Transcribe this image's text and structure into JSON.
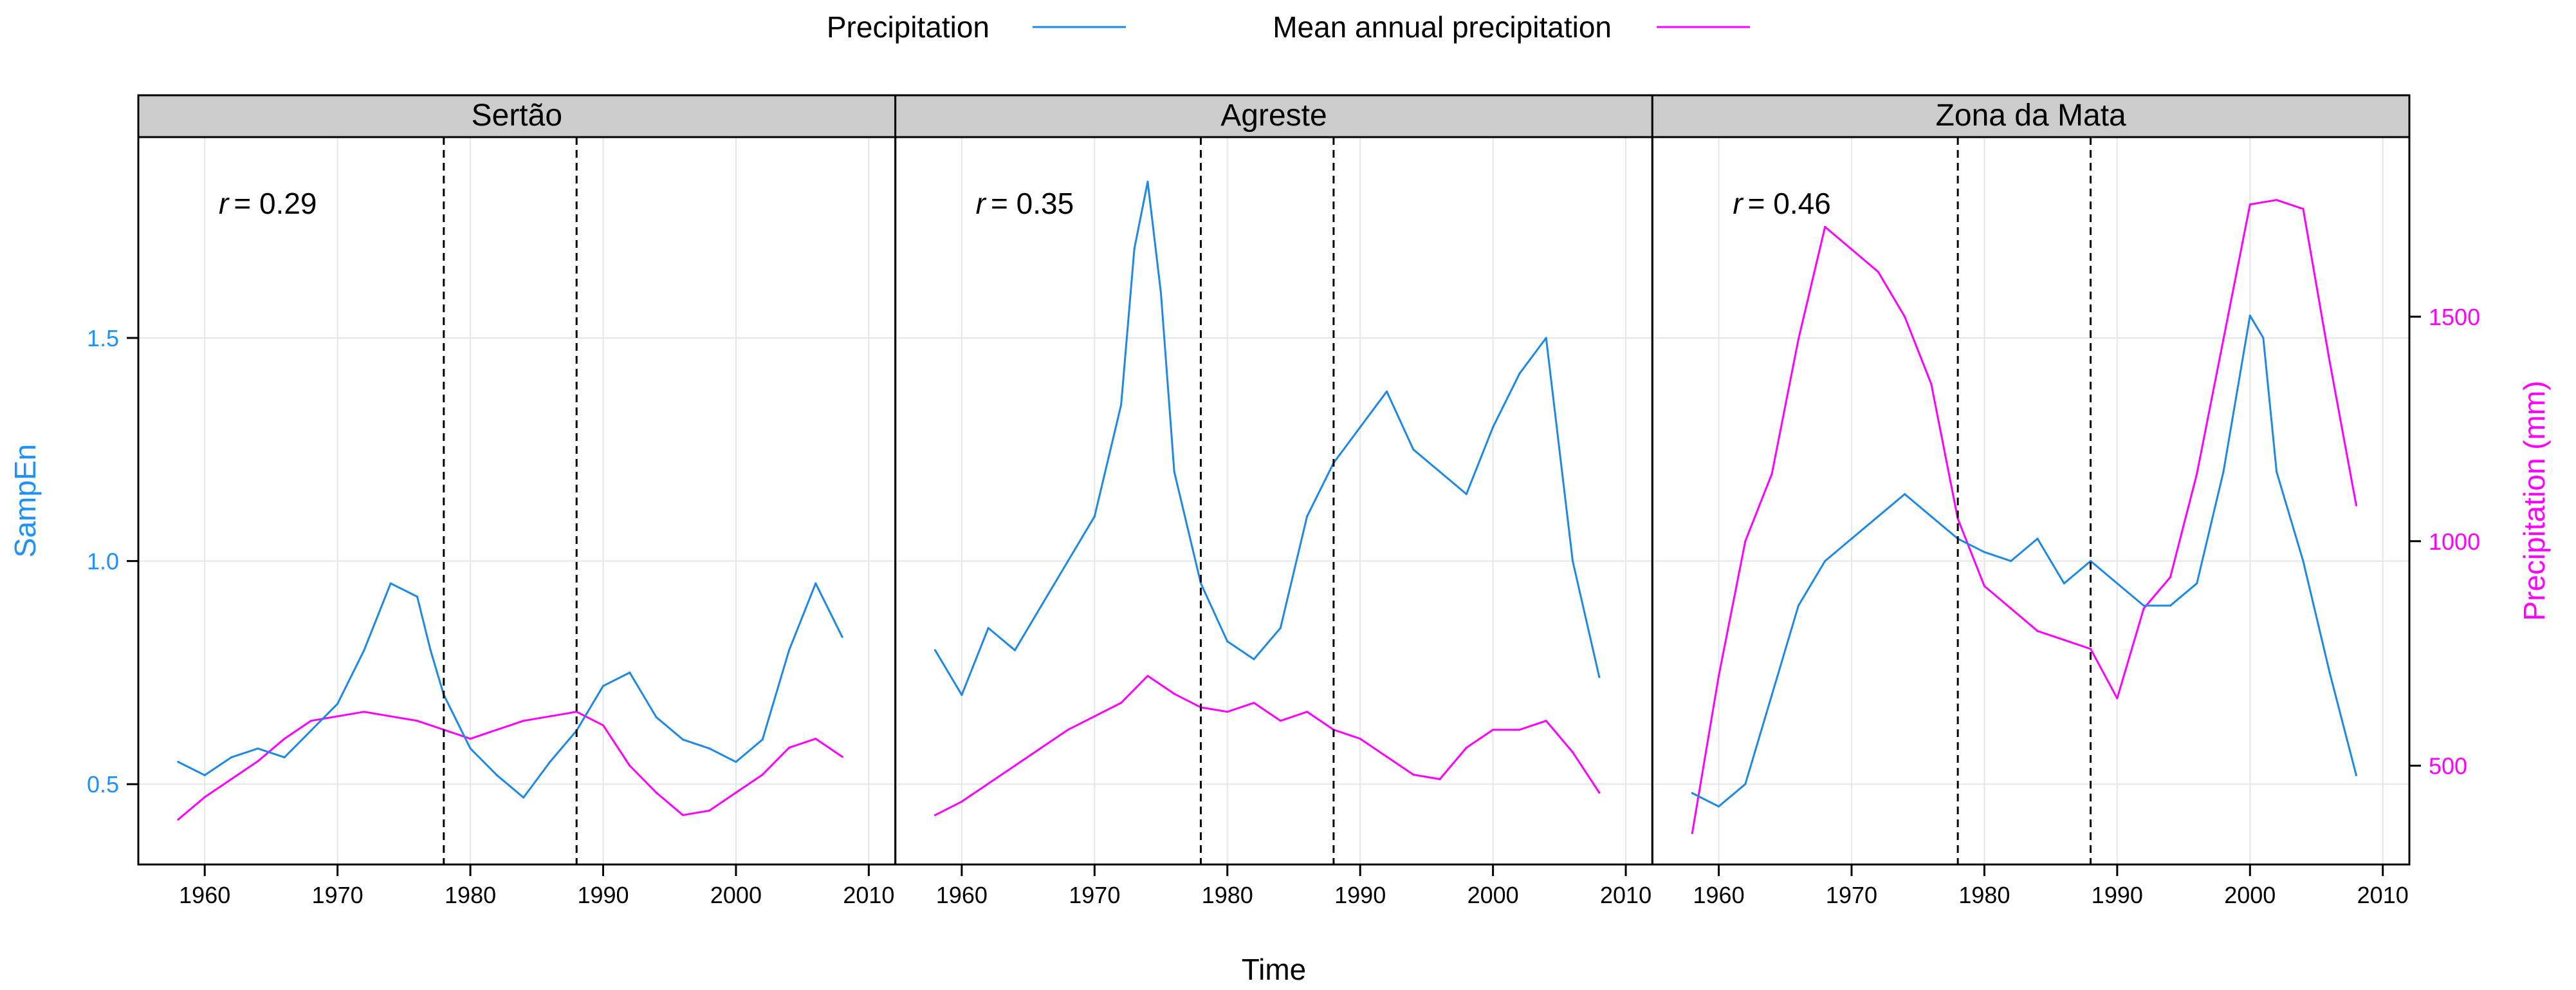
{
  "chart_data": {
    "type": "line",
    "legend": {
      "position": "top-center",
      "entries": [
        {
          "label": "Precipitation",
          "color": "#1E88E5"
        },
        {
          "label": "Mean annual precipitation",
          "color": "#FF00FF"
        }
      ]
    },
    "xlabel": "Time",
    "ylabel_left": "SampEn",
    "ylabel_right": "Precipitation (mm)",
    "colors": {
      "left_axis": "#1E90FF",
      "right_axis": "#FF00FF"
    },
    "xlim": [
      1955,
      2012
    ],
    "x_ticks": [
      1960,
      1970,
      1980,
      1990,
      2000,
      2010
    ],
    "ylim_left": [
      0.32,
      1.95
    ],
    "y_ticks_left": [
      0.5,
      1.0,
      1.5
    ],
    "ylim_right": [
      280,
      1900
    ],
    "y_ticks_right": [
      500,
      1000,
      1500
    ],
    "grid": true,
    "vlines": [
      1978,
      1988
    ],
    "r_prefix": "r",
    "panels": [
      {
        "title": "Sertão",
        "r_value": "= 0.29",
        "series": [
          {
            "name": "Precipitation",
            "axis": "left",
            "x": [
              1958,
              1960,
              1962,
              1964,
              1966,
              1968,
              1970,
              1972,
              1974,
              1976,
              1977,
              1978,
              1980,
              1982,
              1984,
              1986,
              1988,
              1990,
              1992,
              1994,
              1996,
              1998,
              2000,
              2002,
              2004,
              2006,
              2008
            ],
            "y": [
              0.55,
              0.52,
              0.56,
              0.58,
              0.56,
              0.62,
              0.68,
              0.8,
              0.95,
              0.92,
              0.8,
              0.7,
              0.58,
              0.52,
              0.47,
              0.55,
              0.62,
              0.72,
              0.75,
              0.65,
              0.6,
              0.58,
              0.55,
              0.6,
              0.8,
              0.95,
              0.83
            ]
          },
          {
            "name": "Mean annual precipitation",
            "axis": "right",
            "x": [
              1958,
              1960,
              1962,
              1964,
              1966,
              1968,
              1970,
              1972,
              1974,
              1976,
              1978,
              1980,
              1982,
              1984,
              1986,
              1988,
              1990,
              1992,
              1994,
              1996,
              1998,
              2000,
              2002,
              2004,
              2006,
              2008
            ],
            "y": [
              380,
              430,
              470,
              510,
              560,
              600,
              610,
              620,
              610,
              600,
              580,
              560,
              580,
              600,
              610,
              620,
              590,
              500,
              440,
              390,
              400,
              440,
              480,
              540,
              560,
              520
            ]
          }
        ]
      },
      {
        "title": "Agreste",
        "r_value": "= 0.35",
        "series": [
          {
            "name": "Precipitation",
            "axis": "left",
            "x": [
              1958,
              1960,
              1962,
              1964,
              1966,
              1968,
              1970,
              1972,
              1973,
              1974,
              1975,
              1976,
              1978,
              1980,
              1982,
              1984,
              1986,
              1988,
              1990,
              1992,
              1994,
              1996,
              1998,
              2000,
              2002,
              2004,
              2006,
              2008
            ],
            "y": [
              0.8,
              0.7,
              0.85,
              0.8,
              0.9,
              1.0,
              1.1,
              1.35,
              1.7,
              1.85,
              1.6,
              1.2,
              0.95,
              0.82,
              0.78,
              0.85,
              1.1,
              1.22,
              1.3,
              1.38,
              1.25,
              1.2,
              1.15,
              1.3,
              1.42,
              1.5,
              1.0,
              0.74
            ]
          },
          {
            "name": "Mean annual precipitation",
            "axis": "right",
            "x": [
              1958,
              1960,
              1962,
              1964,
              1966,
              1968,
              1970,
              1972,
              1974,
              1976,
              1978,
              1980,
              1982,
              1984,
              1986,
              1988,
              1990,
              1992,
              1994,
              1996,
              1998,
              2000,
              2002,
              2004,
              2006,
              2008
            ],
            "y": [
              390,
              420,
              460,
              500,
              540,
              580,
              610,
              640,
              700,
              660,
              630,
              620,
              640,
              600,
              620,
              580,
              560,
              520,
              480,
              470,
              540,
              580,
              580,
              600,
              530,
              440
            ]
          }
        ]
      },
      {
        "title": "Zona da Mata",
        "r_value": "= 0.46",
        "series": [
          {
            "name": "Precipitation",
            "axis": "left",
            "x": [
              1958,
              1960,
              1962,
              1964,
              1966,
              1968,
              1970,
              1972,
              1974,
              1976,
              1978,
              1980,
              1982,
              1984,
              1986,
              1988,
              1990,
              1992,
              1994,
              1996,
              1998,
              2000,
              2001,
              2002,
              2004,
              2006,
              2008
            ],
            "y": [
              0.48,
              0.45,
              0.5,
              0.7,
              0.9,
              1.0,
              1.05,
              1.1,
              1.15,
              1.1,
              1.05,
              1.02,
              1.0,
              1.05,
              0.95,
              1.0,
              0.95,
              0.9,
              0.9,
              0.95,
              1.2,
              1.55,
              1.5,
              1.2,
              1.0,
              0.75,
              0.52
            ]
          },
          {
            "name": "Mean annual precipitation",
            "axis": "right",
            "x": [
              1958,
              1960,
              1962,
              1964,
              1966,
              1968,
              1970,
              1972,
              1974,
              1976,
              1978,
              1980,
              1982,
              1984,
              1986,
              1988,
              1990,
              1992,
              1994,
              1996,
              1998,
              2000,
              2002,
              2004,
              2006,
              2008
            ],
            "y": [
              350,
              700,
              1000,
              1150,
              1450,
              1700,
              1650,
              1600,
              1500,
              1350,
              1050,
              900,
              850,
              800,
              780,
              760,
              650,
              850,
              920,
              1150,
              1450,
              1750,
              1760,
              1740,
              1400,
              1080
            ]
          }
        ]
      }
    ]
  }
}
